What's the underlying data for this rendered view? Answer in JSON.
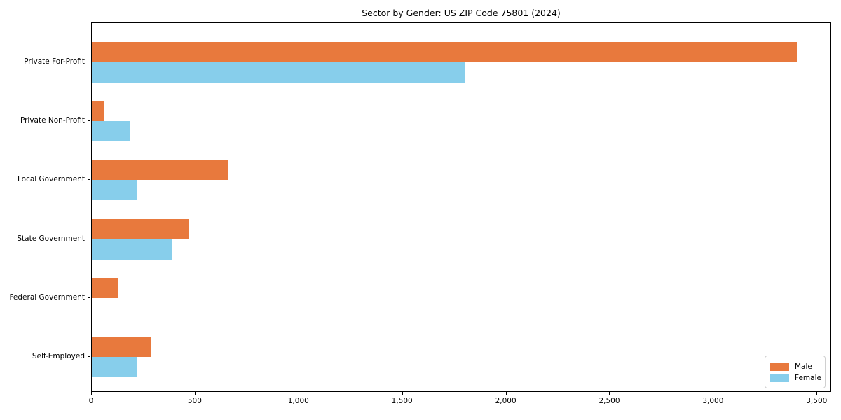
{
  "chart_data": {
    "type": "bar",
    "orientation": "horizontal",
    "title": "Sector by Gender: US ZIP Code 75801 (2024)",
    "categories": [
      "Private For-Profit",
      "Private Non-Profit",
      "Local Government",
      "State Government",
      "Federal Government",
      "Self-Employed"
    ],
    "series": [
      {
        "name": "Male",
        "color": "#e8793d",
        "values": [
          3400,
          60,
          660,
          470,
          130,
          285
        ]
      },
      {
        "name": "Female",
        "color": "#87ceeb",
        "values": [
          1800,
          185,
          220,
          390,
          0,
          215
        ]
      }
    ],
    "xlabel": "",
    "ylabel": "",
    "xlim": [
      0,
      3570
    ],
    "xticks": [
      0,
      500,
      1000,
      1500,
      2000,
      2500,
      3000,
      3500
    ],
    "xtick_labels": [
      "0",
      "500",
      "1,000",
      "1,500",
      "2,000",
      "2,500",
      "3,000",
      "3,500"
    ],
    "grid": false,
    "legend_position": "lower right",
    "background_color": "#ffffff",
    "spine_color": "#000000"
  }
}
